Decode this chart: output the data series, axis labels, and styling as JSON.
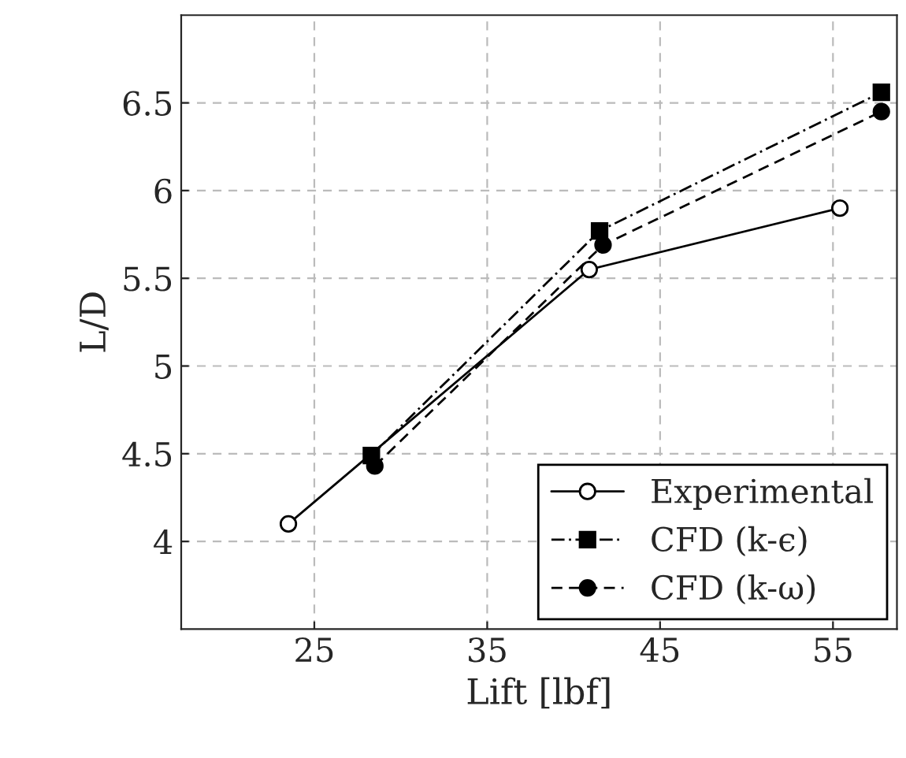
{
  "chart_data": {
    "type": "line",
    "xlabel": "Lift [lbf]",
    "ylabel": "L/D",
    "xlim": [
      17.3,
      58.7
    ],
    "xticks": [
      25,
      35,
      45,
      55
    ],
    "ylim": [
      3.5,
      7.0
    ],
    "yticks": [
      4,
      4.5,
      5,
      5.5,
      6,
      6.5
    ],
    "grid": true,
    "legend": "bottom right",
    "series": [
      {
        "name": "Experimental",
        "color": "#000000",
        "x": [
          23.5,
          40.9,
          55.4
        ],
        "values": [
          4.1,
          5.55,
          5.9
        ],
        "marker": "circle_open",
        "line_style": "solid"
      },
      {
        "name": "CFD (k-ϵ)",
        "color": "#000000",
        "x": [
          28.3,
          41.5,
          57.8
        ],
        "values": [
          4.49,
          5.77,
          6.56
        ],
        "marker": "square",
        "line_style": "dashdot"
      },
      {
        "name": "CFD (k-ω)",
        "color": "#000000",
        "x": [
          28.5,
          41.7,
          57.8
        ],
        "values": [
          4.43,
          5.69,
          6.45
        ],
        "marker": "circle",
        "line_style": "dashed"
      }
    ]
  }
}
